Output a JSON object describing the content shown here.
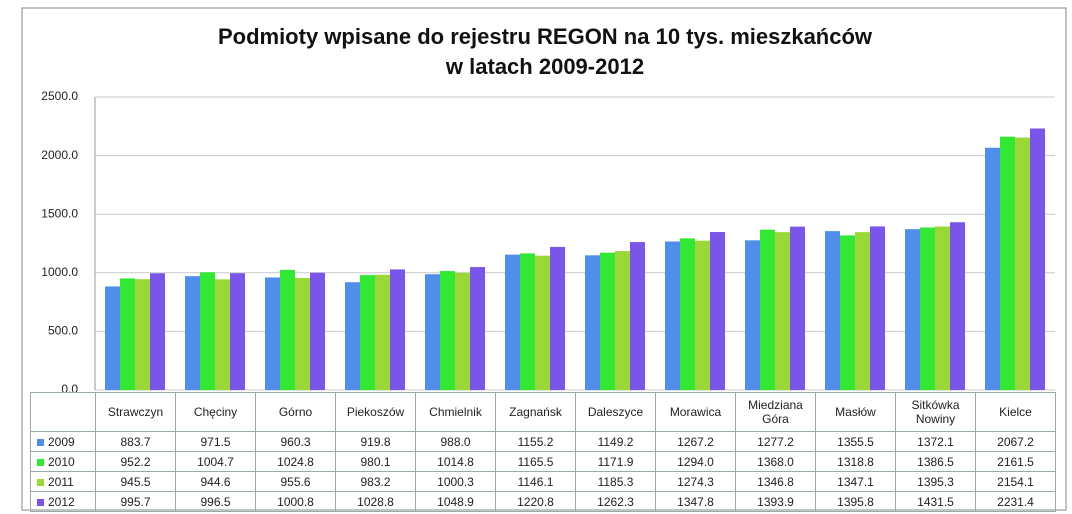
{
  "chart_data": {
    "type": "bar",
    "title": [
      "Podmioty wpisane do rejestru REGON na 10 tys. mieszkańców",
      "w latach 2009-2012"
    ],
    "categories": [
      "Strawczyn",
      "Chęciny",
      "Górno",
      "Piekoszów",
      "Chmielnik",
      "Zagnańsk",
      "Daleszyce",
      "Morawica",
      "Miedziana Góra",
      "Masłów",
      "Sitkówka Nowiny",
      "Kielce"
    ],
    "series": [
      {
        "name": "2009",
        "color": "#4f8fea",
        "values": [
          883.7,
          971.5,
          960.3,
          919.8,
          988.0,
          1155.2,
          1149.2,
          1267.2,
          1277.2,
          1355.5,
          1372.1,
          2067.2
        ],
        "value_labels": [
          "883.7",
          "971.5",
          "960.3",
          "919.8",
          "988.0",
          "1155.2",
          "1149.2",
          "1267.2",
          "1277.2",
          "1355.5",
          "1372.1",
          "2067.2"
        ]
      },
      {
        "name": "2010",
        "color": "#33e833",
        "values": [
          952.2,
          1004.7,
          1024.8,
          980.1,
          1014.8,
          1165.5,
          1171.9,
          1294.0,
          1368.0,
          1318.8,
          1386.5,
          2161.5
        ],
        "value_labels": [
          "952.2",
          "1004.7",
          "1024.8",
          "980.1",
          "1014.8",
          "1165.5",
          "1171.9",
          "1294.0",
          "1368.0",
          "1318.8",
          "1386.5",
          "2161.5"
        ]
      },
      {
        "name": "2011",
        "color": "#9ad83a",
        "values": [
          945.5,
          944.6,
          955.6,
          983.2,
          1000.3,
          1146.1,
          1185.3,
          1274.3,
          1346.8,
          1347.1,
          1395.3,
          2154.1
        ],
        "value_labels": [
          "945.5",
          "944.6",
          "955.6",
          "983.2",
          "1000.3",
          "1146.1",
          "1185.3",
          "1274.3",
          "1346.8",
          "1347.1",
          "1395.3",
          "2154.1"
        ]
      },
      {
        "name": "2012",
        "color": "#7b55e8",
        "values": [
          995.7,
          996.5,
          1000.8,
          1028.8,
          1048.9,
          1220.8,
          1262.3,
          1347.8,
          1393.9,
          1395.8,
          1431.5,
          2231.4
        ],
        "value_labels": [
          "995.7",
          "996.5",
          "1000.8",
          "1028.8",
          "1048.9",
          "1220.8",
          "1262.3",
          "1347.8",
          "1393.9",
          "1395.8",
          "1431.5",
          "2231.4"
        ]
      }
    ],
    "ylim": [
      0,
      2500
    ],
    "yticks": [
      {
        "value": 0,
        "label": "0.0"
      },
      {
        "value": 500,
        "label": "500.0"
      },
      {
        "value": 1000,
        "label": "1000.0"
      },
      {
        "value": 1500,
        "label": "1500.0"
      },
      {
        "value": 2000,
        "label": "2000.0"
      },
      {
        "value": 2500,
        "label": "2500.0"
      }
    ],
    "grid": true
  }
}
